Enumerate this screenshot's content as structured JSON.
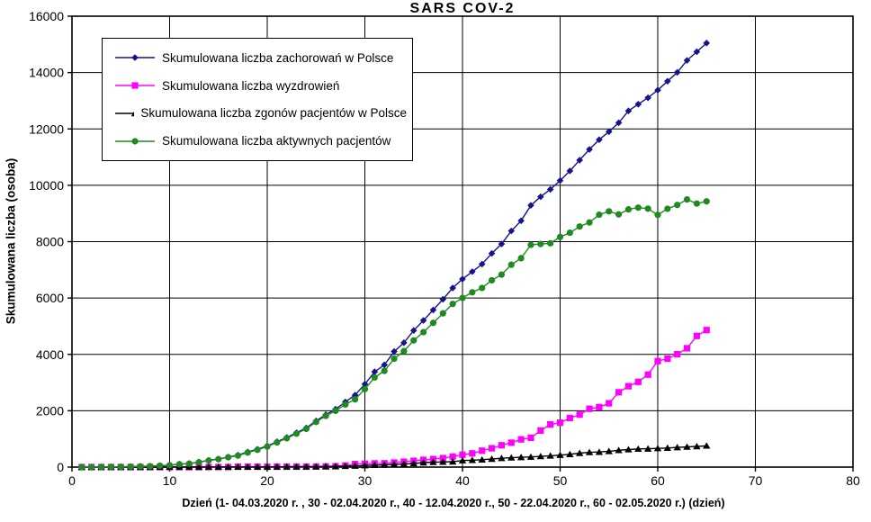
{
  "chart_data": {
    "type": "line",
    "title": "SARS COV-2",
    "xlabel": "Dzień (1- 04.03.2020 r. , 30 - 02.04.2020 r., 40 - 12.04.2020 r., 50 - 22.04.2020 r., 60 - 02.05.2020 r.) (dzień)",
    "ylabel": "Skumulowana liczba (osoba)",
    "xlim": [
      0,
      80
    ],
    "ylim": [
      0,
      16000
    ],
    "xticks": [
      0,
      10,
      20,
      30,
      40,
      50,
      60,
      70,
      80
    ],
    "yticks": [
      0,
      2000,
      4000,
      6000,
      8000,
      10000,
      12000,
      14000,
      16000
    ],
    "grid": true,
    "grid_color": "#000000",
    "legend_position": "top-left-inside",
    "x": [
      1,
      2,
      3,
      4,
      5,
      6,
      7,
      8,
      9,
      10,
      11,
      12,
      13,
      14,
      15,
      16,
      17,
      18,
      19,
      20,
      21,
      22,
      23,
      24,
      25,
      26,
      27,
      28,
      29,
      30,
      31,
      32,
      33,
      34,
      35,
      36,
      37,
      38,
      39,
      40,
      41,
      42,
      43,
      44,
      45,
      46,
      47,
      48,
      49,
      50,
      51,
      52,
      53,
      54,
      55,
      56,
      57,
      58,
      59,
      60,
      61,
      62,
      63,
      64,
      65
    ],
    "series": [
      {
        "name": "Skumulowana liczba zachorowań w Polsce",
        "color": "#14148C",
        "marker": "diamond",
        "values": [
          1,
          1,
          5,
          6,
          11,
          17,
          25,
          31,
          51,
          68,
          104,
          125,
          177,
          238,
          287,
          355,
          425,
          536,
          634,
          749,
          901,
          1051,
          1221,
          1389,
          1638,
          1862,
          2055,
          2311,
          2554,
          2946,
          3383,
          3627,
          4102,
          4413,
          4848,
          5205,
          5575,
          5955,
          6356,
          6674,
          6934,
          7202,
          7582,
          7918,
          8379,
          8742,
          9287,
          9593,
          9856,
          10169,
          10511,
          10892,
          11273,
          11617,
          11902,
          12218,
          12640,
          12877,
          13105,
          13375,
          13693,
          14006,
          14431,
          14740,
          15047
        ]
      },
      {
        "name": "Skumulowana liczba wyzdrowień",
        "color": "#FF00FF",
        "marker": "square",
        "values": [
          0,
          0,
          0,
          0,
          0,
          0,
          0,
          0,
          0,
          0,
          0,
          0,
          1,
          1,
          1,
          1,
          13,
          13,
          13,
          13,
          14,
          14,
          16,
          16,
          18,
          24,
          31,
          56,
          107,
          121,
          131,
          134,
          162,
          191,
          222,
          257,
          284,
          318,
          375,
          439,
          487,
          582,
          668,
          774,
          866,
          983,
          1040,
          1297,
          1513,
          1576,
          1740,
          1862,
          2069,
          2126,
          2265,
          2655,
          2871,
          3025,
          3282,
          3762,
          3847,
          4007,
          4217,
          4655,
          4862
        ]
      },
      {
        "name": "Skumulowana liczba zgonów pacjentów w Polsce",
        "color": "#000000",
        "marker": "triangle",
        "values": [
          0,
          0,
          0,
          0,
          0,
          0,
          0,
          0,
          1,
          2,
          3,
          3,
          4,
          5,
          5,
          5,
          5,
          5,
          7,
          8,
          10,
          14,
          16,
          16,
          18,
          22,
          26,
          33,
          43,
          57,
          71,
          79,
          94,
          107,
          129,
          159,
          174,
          181,
          191,
          232,
          245,
          263,
          286,
          314,
          332,
          347,
          360,
          380,
          401,
          426,
          454,
          494,
          524,
          535,
          562,
          596,
          624,
          644,
          651,
          664,
          678,
          698,
          716,
          733,
          755
        ]
      },
      {
        "name": "Skumulowana liczba aktywnych pacjentów",
        "color": "#1F8A1F",
        "marker": "circle",
        "values": [
          1,
          1,
          5,
          6,
          11,
          17,
          25,
          31,
          50,
          66,
          101,
          122,
          172,
          232,
          281,
          349,
          407,
          518,
          614,
          728,
          877,
          1023,
          1189,
          1357,
          1602,
          1816,
          1998,
          2222,
          2404,
          2768,
          3181,
          3414,
          3846,
          4115,
          4497,
          4789,
          5117,
          5456,
          5790,
          6003,
          6202,
          6357,
          6628,
          6830,
          7181,
          7412,
          7887,
          7916,
          7942,
          8167,
          8317,
          8536,
          8680,
          8956,
          9075,
          8967,
          9145,
          9208,
          9172,
          8949,
          9168,
          9301,
          9498,
          9352,
          9430
        ]
      }
    ]
  }
}
